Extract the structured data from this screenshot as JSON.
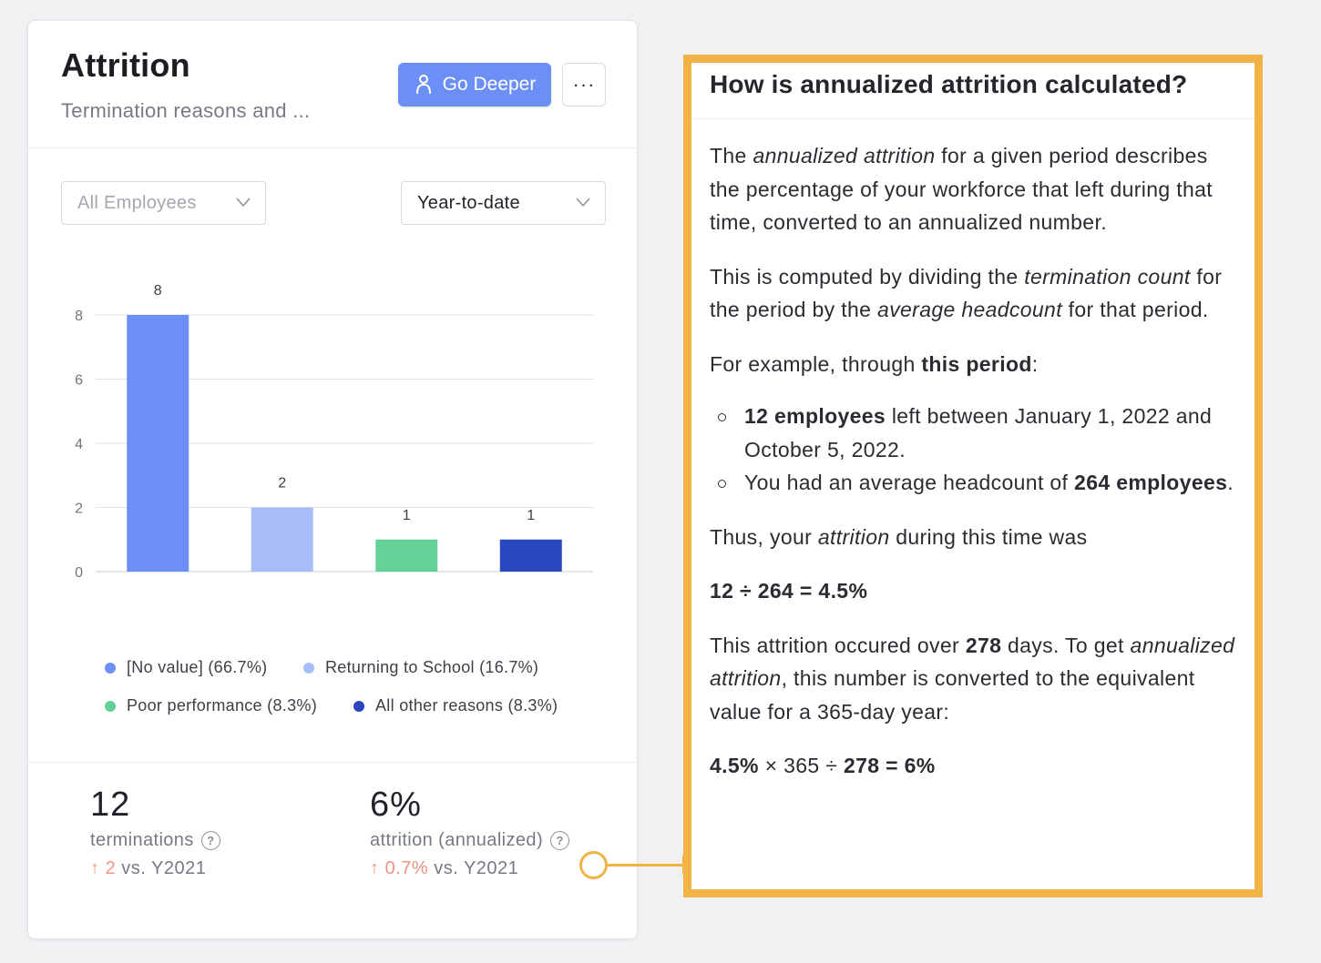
{
  "card": {
    "title": "Attrition",
    "subtitle": "Termination reasons and ...",
    "go_deeper_label": "Go Deeper",
    "more_label": "···",
    "filter_employees": "All Employees",
    "filter_period": "Year-to-date"
  },
  "chart_data": {
    "type": "bar",
    "categories": [
      "[No value]",
      "Returning to School",
      "Poor performance",
      "All other reasons"
    ],
    "values": [
      8,
      2,
      1,
      1
    ],
    "colors": [
      "#6b8ff5",
      "#a7bdf8",
      "#64d297",
      "#2a47c0"
    ],
    "yticks": [
      "0",
      "2",
      "4",
      "6",
      "8"
    ],
    "ylim": [
      0,
      8
    ],
    "grid": true,
    "legend_position": "bottom",
    "legend": [
      "[No value] (66.7%)",
      "Returning to School (16.7%)",
      "Poor performance (8.3%)",
      "All other reasons (8.3%)"
    ]
  },
  "stats": {
    "terminations": {
      "value": "12",
      "label": "terminations",
      "change": "2",
      "compare": " vs. Y2021"
    },
    "attrition": {
      "value": "6%",
      "label": "attrition (annualized)",
      "change": "0.7%",
      "compare": " vs. Y2021"
    },
    "help_glyph": "?",
    "arrow_glyph": "↑"
  },
  "panel": {
    "title": "How is annualized attrition calculated?",
    "p1": {
      "a": "The ",
      "em": "annualized attrition",
      "b": " for a given period describes the percentage of your workforce that left during that time, converted to an annualized number."
    },
    "p2": {
      "a": "This is computed by dividing the ",
      "em1": "termination count",
      "b": " for the period by the ",
      "em2": "average headcount",
      "c": " for that period."
    },
    "p3": {
      "a": "For example, through ",
      "strong": "this period",
      "b": ":"
    },
    "bullet1": {
      "strong": "12 employees",
      "rest": " left between January 1, 2022 and October 5, 2022."
    },
    "bullet2": {
      "a": "You had an average headcount of ",
      "strong": "264 employees",
      "b": "."
    },
    "p4": {
      "a": "Thus, your ",
      "em": "attrition",
      "b": " during this time was"
    },
    "formula1": "12 ÷ 264 = 4.5%",
    "p5": {
      "a": "This attrition occured over ",
      "strong": "278",
      "b": " days. To get ",
      "em": "annualized attrition",
      "c": ", this number is converted to the equivalent value for a 365-day year:"
    },
    "formula2": {
      "a": "4.5%",
      "b": " × 365 ÷ ",
      "c": "278",
      "d": " = 6%"
    }
  }
}
